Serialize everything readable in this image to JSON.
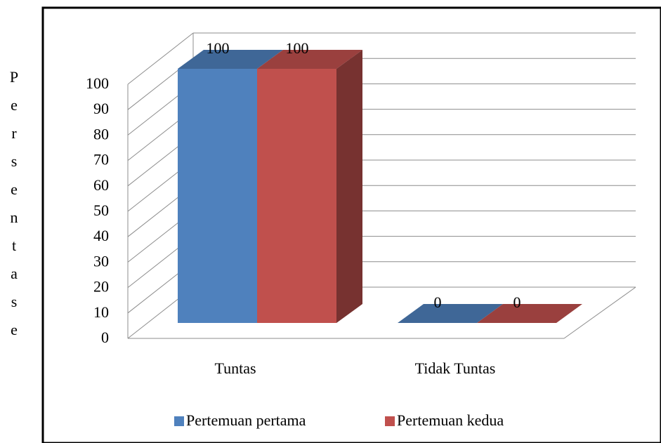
{
  "chart_data": {
    "type": "bar3d",
    "ylabel": "Persentase",
    "categories": [
      "Tuntas",
      "Tidak Tuntas"
    ],
    "series": [
      {
        "name": "Pertemuan pertama",
        "color": "#4f81bd",
        "values": [
          100,
          0
        ]
      },
      {
        "name": "Pertemuan kedua",
        "color": "#c0504d",
        "values": [
          100,
          0
        ]
      }
    ],
    "ylim": [
      0,
      100
    ],
    "yticks": [
      0,
      10,
      20,
      30,
      40,
      50,
      60,
      70,
      80,
      90,
      100
    ],
    "grid": true,
    "legend": "bottom"
  }
}
